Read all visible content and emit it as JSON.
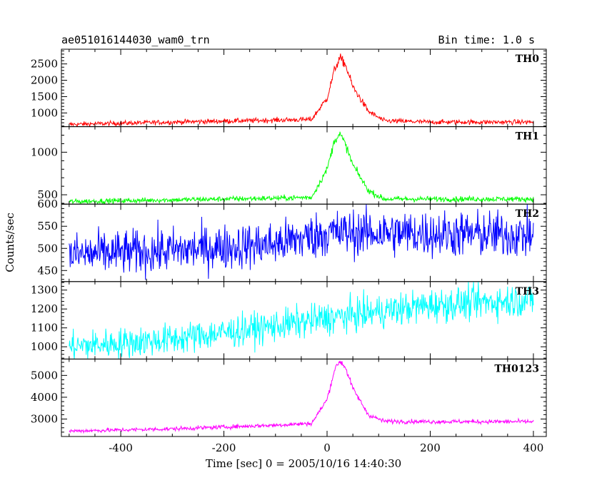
{
  "header": {
    "left_title": "ae051016144030_wam0_trn",
    "right_title": "Bin time: 1.0 s"
  },
  "chart_data": {
    "type": "line",
    "title": "ae051016144030_wam0_trn",
    "subtitle": "Bin time: 1.0 s",
    "xlabel": "Time [sec] 0 = 2005/10/16 14:40:30",
    "ylabel": "Counts/sec",
    "xlim": [
      -515,
      425
    ],
    "xticks": [
      -400,
      -200,
      0,
      200,
      400
    ],
    "x_range": [
      -500,
      400
    ],
    "bin_time_s": 1.0,
    "grid": false,
    "panels": [
      {
        "name": "TH0",
        "color": "#ff0000",
        "ylim": [
          580,
          2950
        ],
        "yticks": [
          1000,
          1500,
          2000,
          2500
        ],
        "trend": {
          "x": [
            -500,
            -300,
            -100,
            -30,
            0,
            15,
            25,
            35,
            50,
            80,
            110,
            200,
            400
          ],
          "y": [
            650,
            720,
            780,
            800,
            1450,
            2350,
            2680,
            2500,
            1800,
            1050,
            760,
            720,
            720
          ]
        },
        "noise": 35
      },
      {
        "name": "TH1",
        "color": "#00ff00",
        "ylim": [
          390,
          1300
        ],
        "yticks": [
          500,
          1000
        ],
        "trend": {
          "x": [
            -500,
            -300,
            -100,
            -30,
            0,
            15,
            25,
            35,
            50,
            80,
            110,
            200,
            400
          ],
          "y": [
            420,
            440,
            460,
            470,
            800,
            1150,
            1210,
            1100,
            850,
            550,
            450,
            450,
            450
          ]
        },
        "noise": 15
      },
      {
        "name": "TH2",
        "color": "#0000ff",
        "ylim": [
          425,
          600
        ],
        "yticks": [
          450,
          500,
          550,
          600
        ],
        "trend": {
          "x": [
            -500,
            -300,
            -100,
            0,
            100,
            400
          ],
          "y": [
            485,
            495,
            510,
            535,
            535,
            530
          ]
        },
        "noise": 25
      },
      {
        "name": "TH3",
        "color": "#00ffff",
        "ylim": [
          935,
          1345
        ],
        "yticks": [
          1000,
          1100,
          1200,
          1300
        ],
        "trend": {
          "x": [
            -500,
            -300,
            -100,
            0,
            200,
            400
          ],
          "y": [
            1000,
            1040,
            1110,
            1150,
            1220,
            1250
          ]
        },
        "noise": 40
      },
      {
        "name": "TH0123",
        "color": "#ff00ff",
        "ylim": [
          2200,
          5750
        ],
        "yticks": [
          3000,
          4000,
          5000
        ],
        "trend": {
          "x": [
            -500,
            -300,
            -100,
            -30,
            0,
            15,
            25,
            35,
            50,
            80,
            110,
            200,
            400
          ],
          "y": [
            2450,
            2550,
            2720,
            2800,
            3900,
            5300,
            5650,
            5400,
            4400,
            3200,
            2900,
            2880,
            2880
          ]
        },
        "noise": 45
      }
    ]
  }
}
